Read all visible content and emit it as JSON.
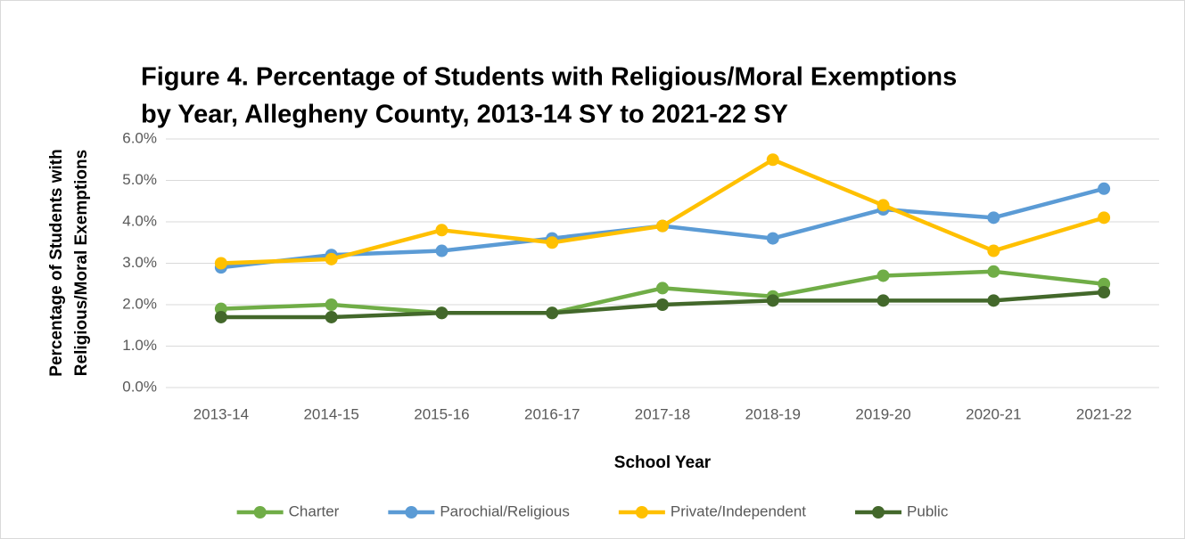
{
  "chart_data": {
    "type": "line",
    "title": [
      "Figure 4. Percentage of Students with Religious/Moral Exemptions",
      "by Year, Allegheny County, 2013-14 SY to 2021-22 SY"
    ],
    "y_label": [
      "Percentage of Students with",
      "Religious/Moral Exemptions"
    ],
    "x_label": "School Year",
    "categories": [
      "2013-14",
      "2014-15",
      "2015-16",
      "2016-17",
      "2017-18",
      "2018-19",
      "2019-20",
      "2020-21",
      "2021-22"
    ],
    "series": [
      {
        "name": "Charter",
        "color": "#70ad47",
        "values": [
          1.9,
          2.0,
          1.8,
          1.8,
          2.4,
          2.2,
          2.7,
          2.8,
          2.5
        ]
      },
      {
        "name": "Parochial/Religious",
        "color": "#5b9bd5",
        "values": [
          2.9,
          3.2,
          3.3,
          3.6,
          3.9,
          3.6,
          4.3,
          4.1,
          4.8
        ]
      },
      {
        "name": "Private/Independent",
        "color": "#ffc000",
        "values": [
          3.0,
          3.1,
          3.8,
          3.5,
          3.9,
          5.5,
          4.4,
          3.3,
          4.1
        ]
      },
      {
        "name": "Public",
        "color": "#43682b",
        "values": [
          1.7,
          1.7,
          1.8,
          1.8,
          2.0,
          2.1,
          2.1,
          2.1,
          2.3
        ]
      }
    ],
    "ylim": [
      0,
      6
    ],
    "yticks": [
      {
        "value": 0,
        "label": "0.0%"
      },
      {
        "value": 1,
        "label": "1.0%"
      },
      {
        "value": 2,
        "label": "2.0%"
      },
      {
        "value": 3,
        "label": "3.0%"
      },
      {
        "value": 4,
        "label": "4.0%"
      },
      {
        "value": 5,
        "label": "5.0%"
      },
      {
        "value": 6,
        "label": "6.0%"
      }
    ],
    "grid": true,
    "legend": "bottom"
  }
}
